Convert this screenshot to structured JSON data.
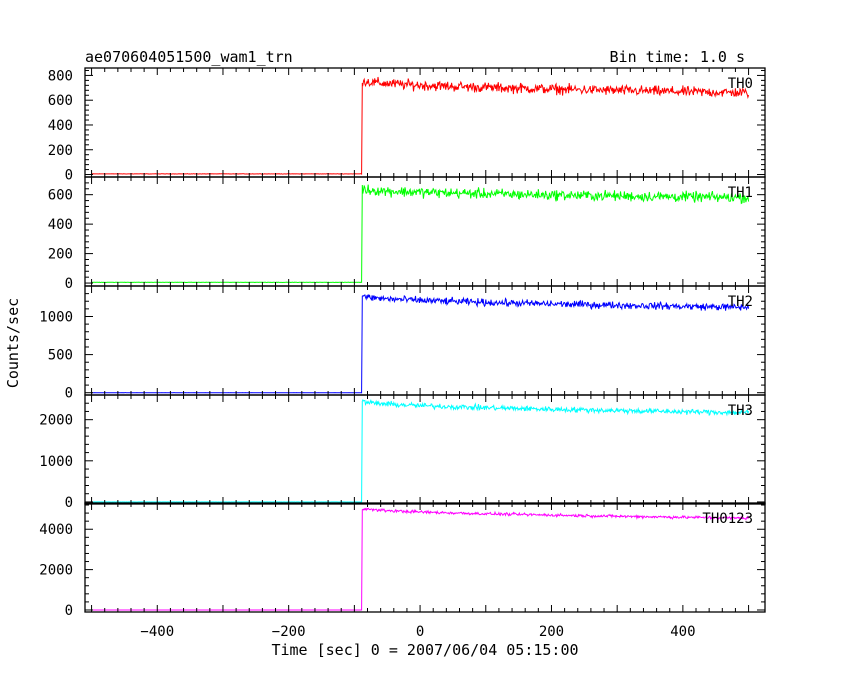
{
  "header": {
    "title": "ae070604051500_wam1_trn",
    "bin_time": "Bin time: 1.0 s"
  },
  "chart_data": {
    "type": "line",
    "title": "ae070604051500_wam1_trn",
    "xlabel": "Time [sec] 0 = 2007/06/04 05:15:00",
    "ylabel": "Counts/sec",
    "xlim": [
      -510,
      525
    ],
    "x_ticks": [
      -400,
      -200,
      0,
      200,
      400
    ],
    "x_tick_labels": [
      "−400",
      "−200",
      "0",
      "200",
      "400"
    ],
    "step_time": -88,
    "series": [
      {
        "name": "TH0",
        "color": "#ff0000",
        "ylim": [
          -20,
          860
        ],
        "yticks": [
          0,
          200,
          400,
          600,
          800
        ],
        "pre_level": 5,
        "peak_level": 760,
        "end_level": 660,
        "noise": 35
      },
      {
        "name": "TH1",
        "color": "#00ff00",
        "ylim": [
          -20,
          720
        ],
        "yticks": [
          0,
          200,
          400,
          600
        ],
        "pre_level": 5,
        "peak_level": 640,
        "end_level": 580,
        "noise": 30
      },
      {
        "name": "TH2",
        "color": "#0000ff",
        "ylim": [
          -30,
          1400
        ],
        "yticks": [
          0,
          500,
          1000
        ],
        "pre_level": 0,
        "peak_level": 1270,
        "end_level": 1120,
        "noise": 40
      },
      {
        "name": "TH3",
        "color": "#00ffff",
        "ylim": [
          -50,
          2600
        ],
        "yticks": [
          0,
          1000,
          2000
        ],
        "pre_level": 0,
        "peak_level": 2450,
        "end_level": 2170,
        "noise": 55
      },
      {
        "name": "TH0123",
        "color": "#ff00ff",
        "ylim": [
          -100,
          5300
        ],
        "yticks": [
          0,
          2000,
          4000
        ],
        "pre_level": 0,
        "peak_level": 5050,
        "end_level": 4550,
        "noise": 60
      }
    ]
  }
}
